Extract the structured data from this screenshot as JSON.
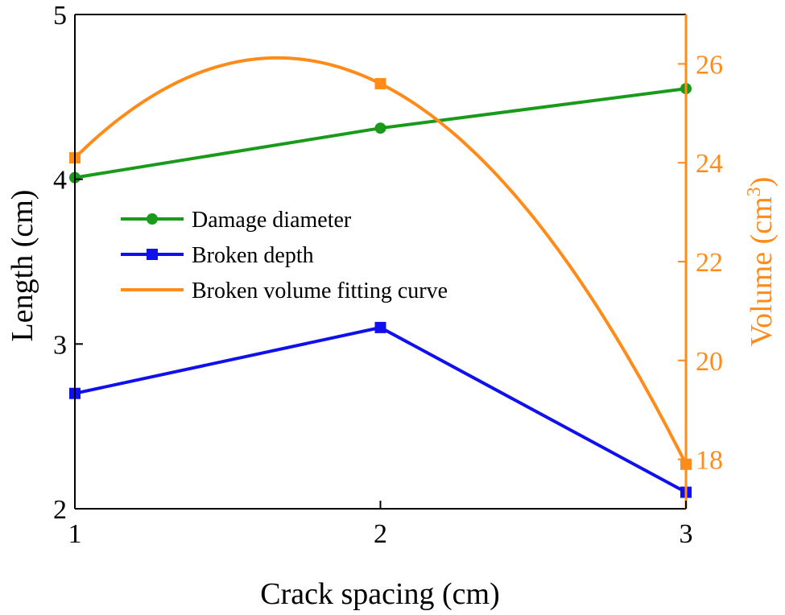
{
  "chart_data": {
    "type": "line",
    "xlabel": "Crack spacing (cm)",
    "ylabel_left": "Length (cm)",
    "ylabel_right": "Volume (cm",
    "ylabel_right_sup": "3",
    "ylabel_right_close": ")",
    "xlim": [
      1,
      3
    ],
    "ylim_left": [
      2,
      5
    ],
    "ylim_right": [
      17,
      27
    ],
    "x_ticks": [
      1,
      2,
      3
    ],
    "y_left_ticks": [
      2,
      3,
      4,
      5
    ],
    "y_right_ticks": [
      18,
      20,
      22,
      24,
      26
    ],
    "grid": false,
    "legend_position": "center-left",
    "series": [
      {
        "name": "Damage diameter",
        "axis": "left",
        "x": [
          1,
          2,
          3
        ],
        "values": [
          4.01,
          4.31,
          4.55
        ],
        "color": "#1a9a1a",
        "marker": "circle",
        "style": "line"
      },
      {
        "name": "Broken depth",
        "axis": "left",
        "x": [
          1,
          2,
          3
        ],
        "values": [
          2.7,
          3.1,
          2.1
        ],
        "color": "#1010ee",
        "marker": "square",
        "style": "line"
      },
      {
        "name": "Broken volume fitting curve",
        "axis": "right",
        "x": [
          1,
          2,
          3
        ],
        "values": [
          24.1,
          25.6,
          17.9
        ],
        "color": "#ff8c1a",
        "marker": "square",
        "style": "fit-curve"
      }
    ]
  }
}
